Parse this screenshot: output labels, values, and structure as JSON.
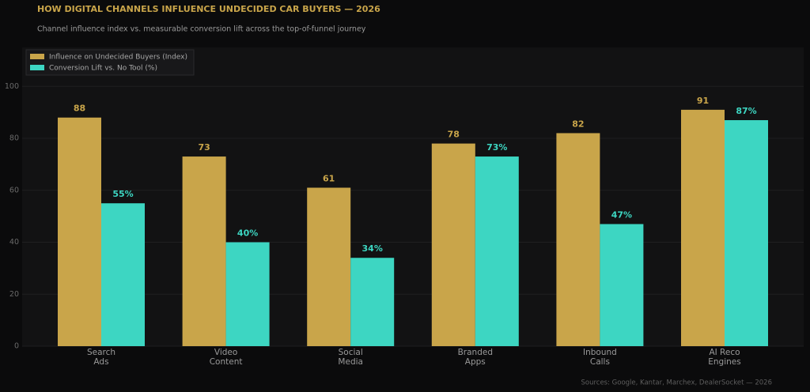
{
  "chart_data": {
    "type": "bar",
    "title": "HOW DIGITAL CHANNELS INFLUENCE UNDECIDED CAR BUYERS — 2026",
    "subtitle": "Channel influence index vs. measurable conversion lift across the top-of-funnel journey",
    "source": "Sources: Google, Kantar, Marchex, DealerSocket — 2026",
    "categories": [
      "Search Ads",
      "Video Content",
      "Social Media",
      "Branded Apps",
      "Inbound Calls",
      "AI Reco Engines"
    ],
    "series": [
      {
        "name": "Influence on Undecided Buyers (Index)",
        "color": "#c9a54a",
        "values": [
          88,
          73,
          61,
          78,
          82,
          91
        ]
      },
      {
        "name": "Conversion Lift vs. No Tool (%)",
        "color": "#3dd6c2",
        "values": [
          55,
          40,
          34,
          73,
          47,
          87
        ],
        "value_labels": [
          "55%",
          "40%",
          "34%",
          "73%",
          "47%",
          "87%"
        ]
      }
    ],
    "ylim": [
      0,
      115
    ],
    "yticks": [
      0,
      20,
      40,
      60,
      80,
      100
    ],
    "grid": true,
    "legend": "top-left"
  }
}
